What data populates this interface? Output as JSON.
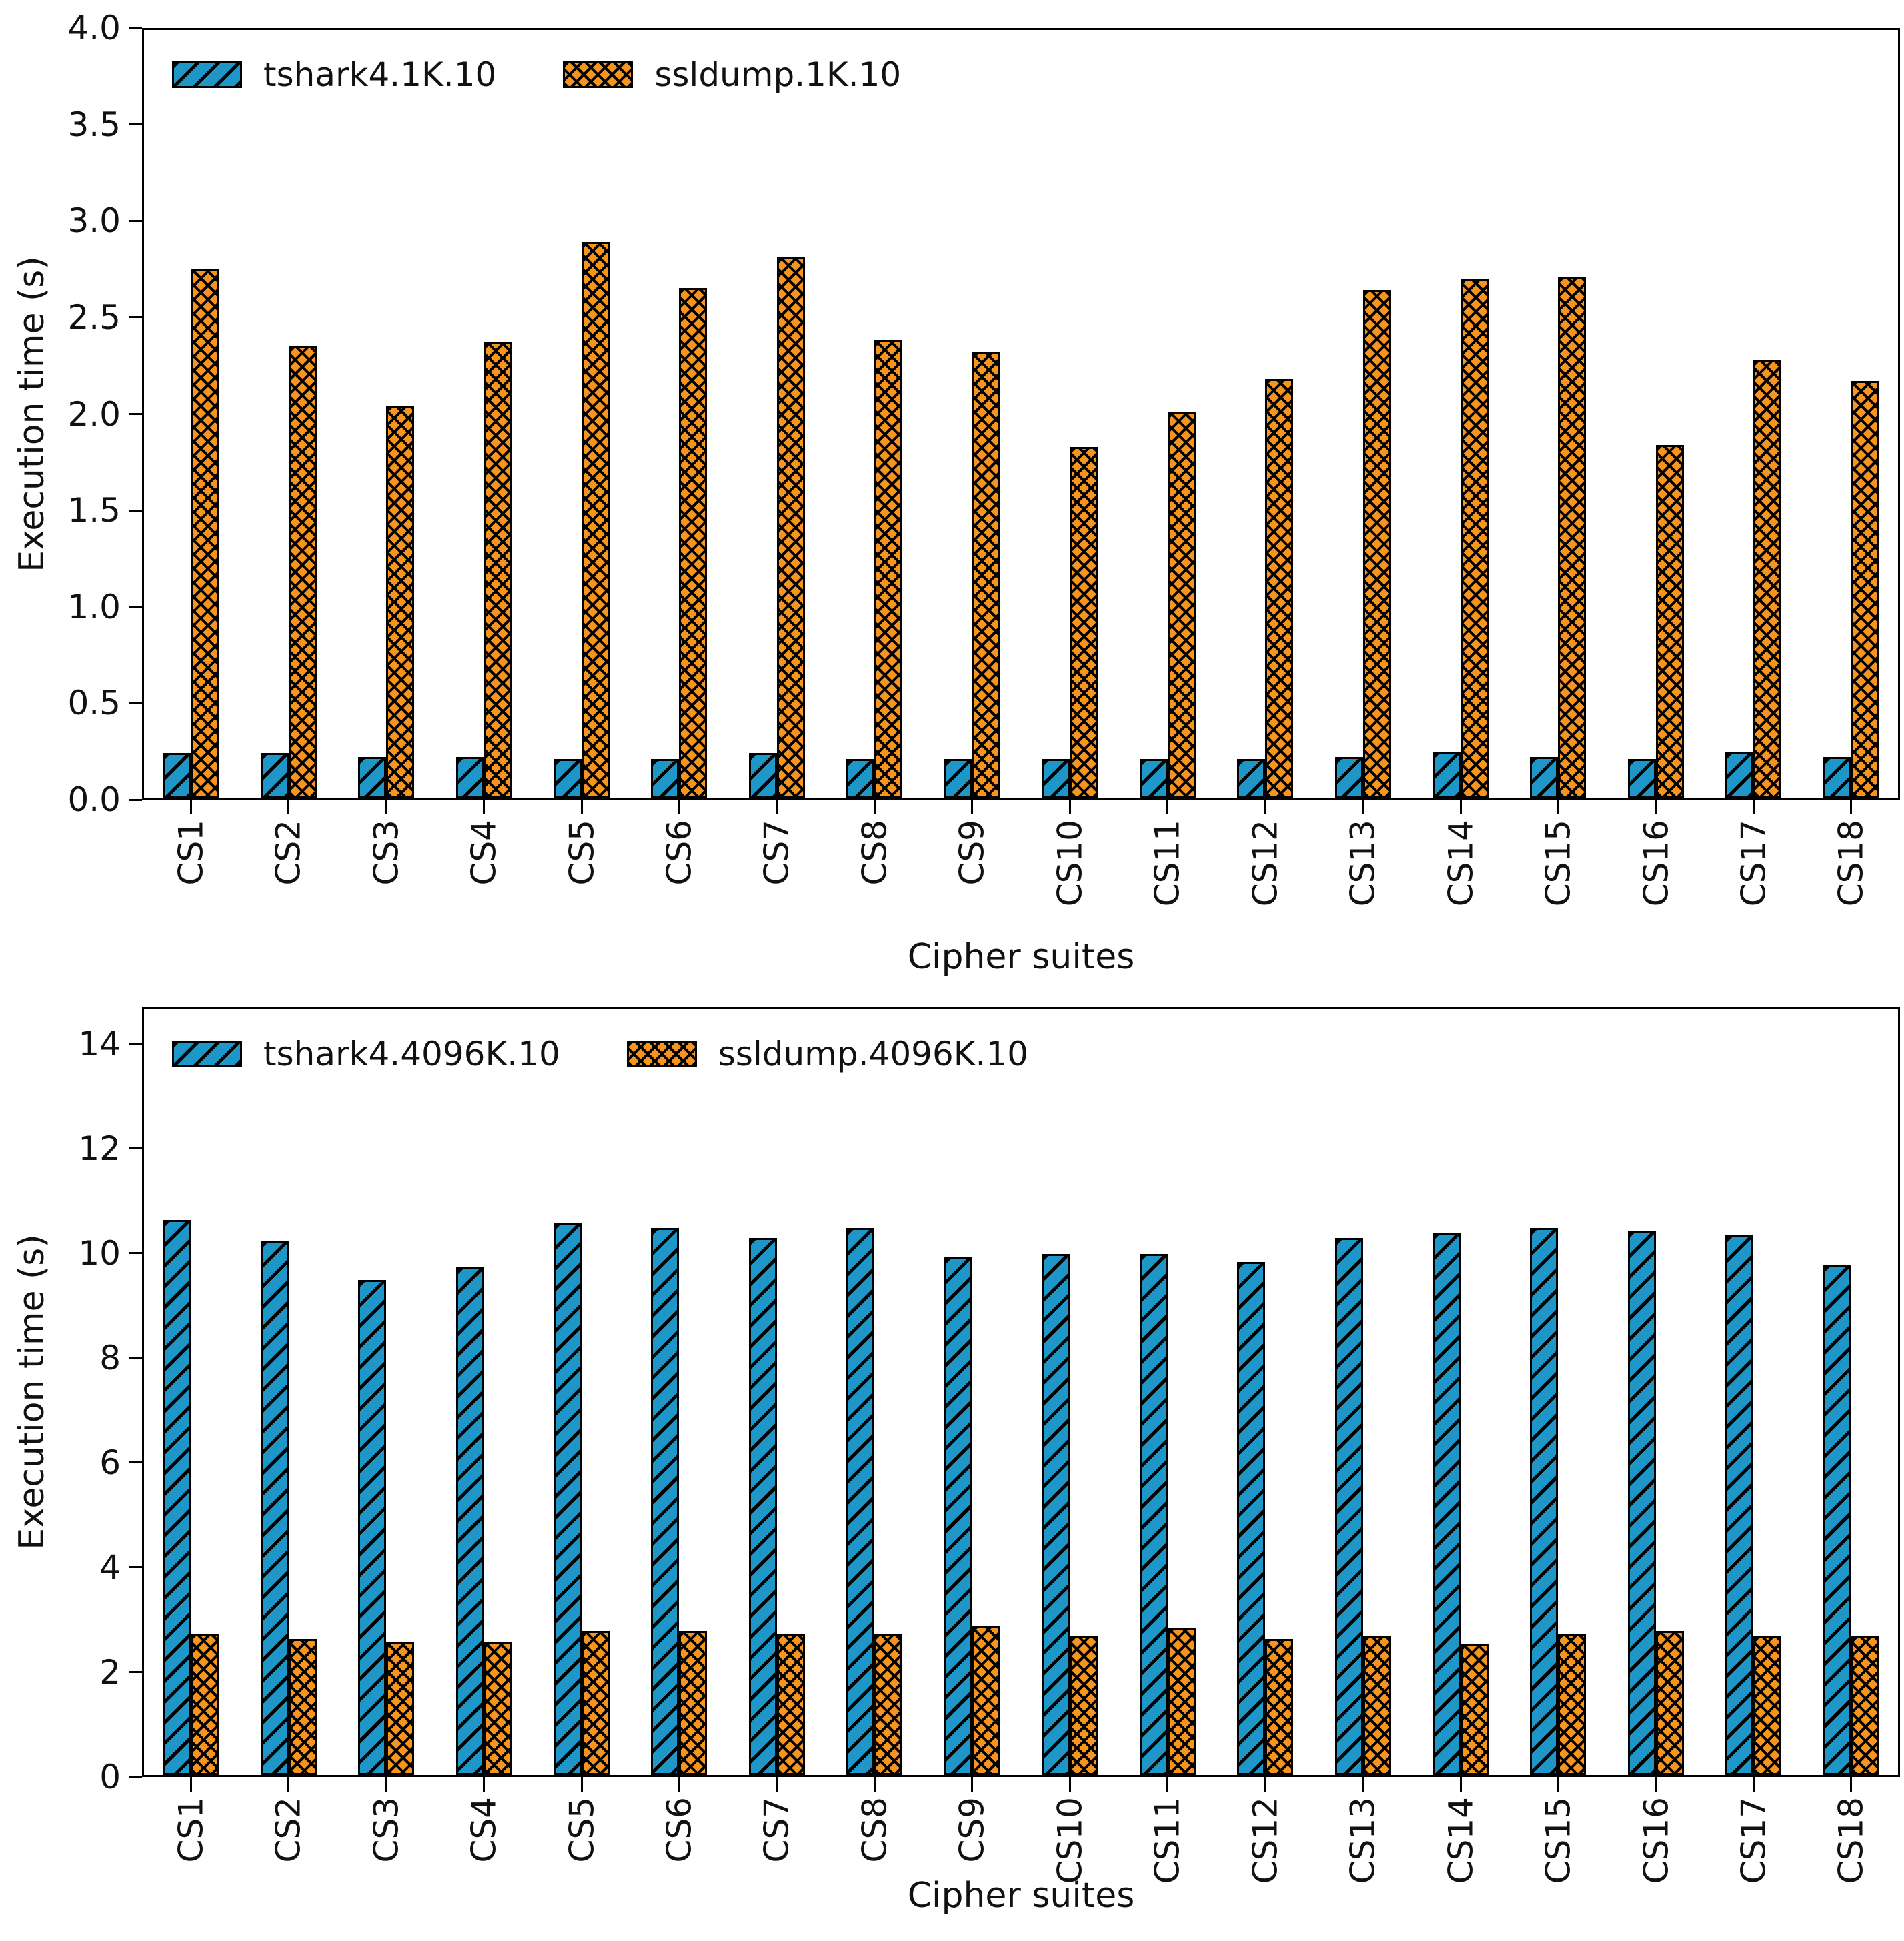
{
  "figure": {
    "background": "#ffffff",
    "text_color": "#111111",
    "colors": {
      "tshark_blue": "#1E96C8",
      "ssldump_orange": "#F7941E",
      "edge_black": "#000000"
    }
  },
  "chart_data": [
    {
      "type": "bar",
      "title": "",
      "categories": [
        "CS1",
        "CS2",
        "CS3",
        "CS4",
        "CS5",
        "CS6",
        "CS7",
        "CS8",
        "CS9",
        "CS10",
        "CS11",
        "CS12",
        "CS13",
        "CS14",
        "CS15",
        "CS16",
        "CS17",
        "CS18"
      ],
      "series": [
        {
          "name": "tshark4.1K.10",
          "color": "#1E96C8",
          "hatch": "//",
          "values": [
            0.23,
            0.23,
            0.21,
            0.21,
            0.2,
            0.2,
            0.23,
            0.2,
            0.2,
            0.2,
            0.2,
            0.2,
            0.21,
            0.24,
            0.21,
            0.2,
            0.24,
            0.21
          ]
        },
        {
          "name": "ssldump.1K.10",
          "color": "#F7941E",
          "hatch": "xx",
          "values": [
            2.74,
            2.34,
            2.03,
            2.36,
            2.88,
            2.64,
            2.8,
            2.37,
            2.31,
            1.82,
            2.0,
            2.17,
            2.63,
            2.69,
            2.7,
            1.83,
            2.27,
            2.16
          ]
        }
      ],
      "xlabel": "Cipher suites",
      "ylabel": "Execution time (s)",
      "ylim": [
        0,
        4.0
      ],
      "ytick_labels": [
        "0.0",
        "0.5",
        "1.0",
        "1.5",
        "2.0",
        "2.5",
        "3.0",
        "3.5",
        "4.0"
      ],
      "ytick_values": [
        0,
        0.5,
        1.0,
        1.5,
        2.0,
        2.5,
        3.0,
        3.5,
        4.0
      ],
      "legend_position": "upper-left",
      "grid": false
    },
    {
      "type": "bar",
      "title": "",
      "categories": [
        "CS1",
        "CS2",
        "CS3",
        "CS4",
        "CS5",
        "CS6",
        "CS7",
        "CS8",
        "CS9",
        "CS10",
        "CS11",
        "CS12",
        "CS13",
        "CS14",
        "CS15",
        "CS16",
        "CS17",
        "CS18"
      ],
      "series": [
        {
          "name": "tshark4.4096K.10",
          "color": "#1E96C8",
          "hatch": "//",
          "values": [
            10.6,
            10.2,
            9.45,
            9.7,
            10.55,
            10.45,
            10.25,
            10.45,
            9.9,
            9.95,
            9.95,
            9.8,
            10.25,
            10.35,
            10.45,
            10.4,
            10.3,
            9.75
          ]
        },
        {
          "name": "ssldump.4096K.10",
          "color": "#F7941E",
          "hatch": "xx",
          "values": [
            2.7,
            2.6,
            2.55,
            2.55,
            2.75,
            2.75,
            2.7,
            2.7,
            2.85,
            2.65,
            2.8,
            2.6,
            2.65,
            2.5,
            2.7,
            2.75,
            2.65,
            2.65
          ]
        }
      ],
      "xlabel": "Cipher suites",
      "ylabel": "Execution time (s)",
      "ylim": [
        0,
        14.7
      ],
      "ytick_labels": [
        "0",
        "2",
        "4",
        "6",
        "8",
        "10",
        "12",
        "14"
      ],
      "ytick_values": [
        0,
        2,
        4,
        6,
        8,
        10,
        12,
        14
      ],
      "legend_position": "upper-left",
      "grid": false
    }
  ]
}
